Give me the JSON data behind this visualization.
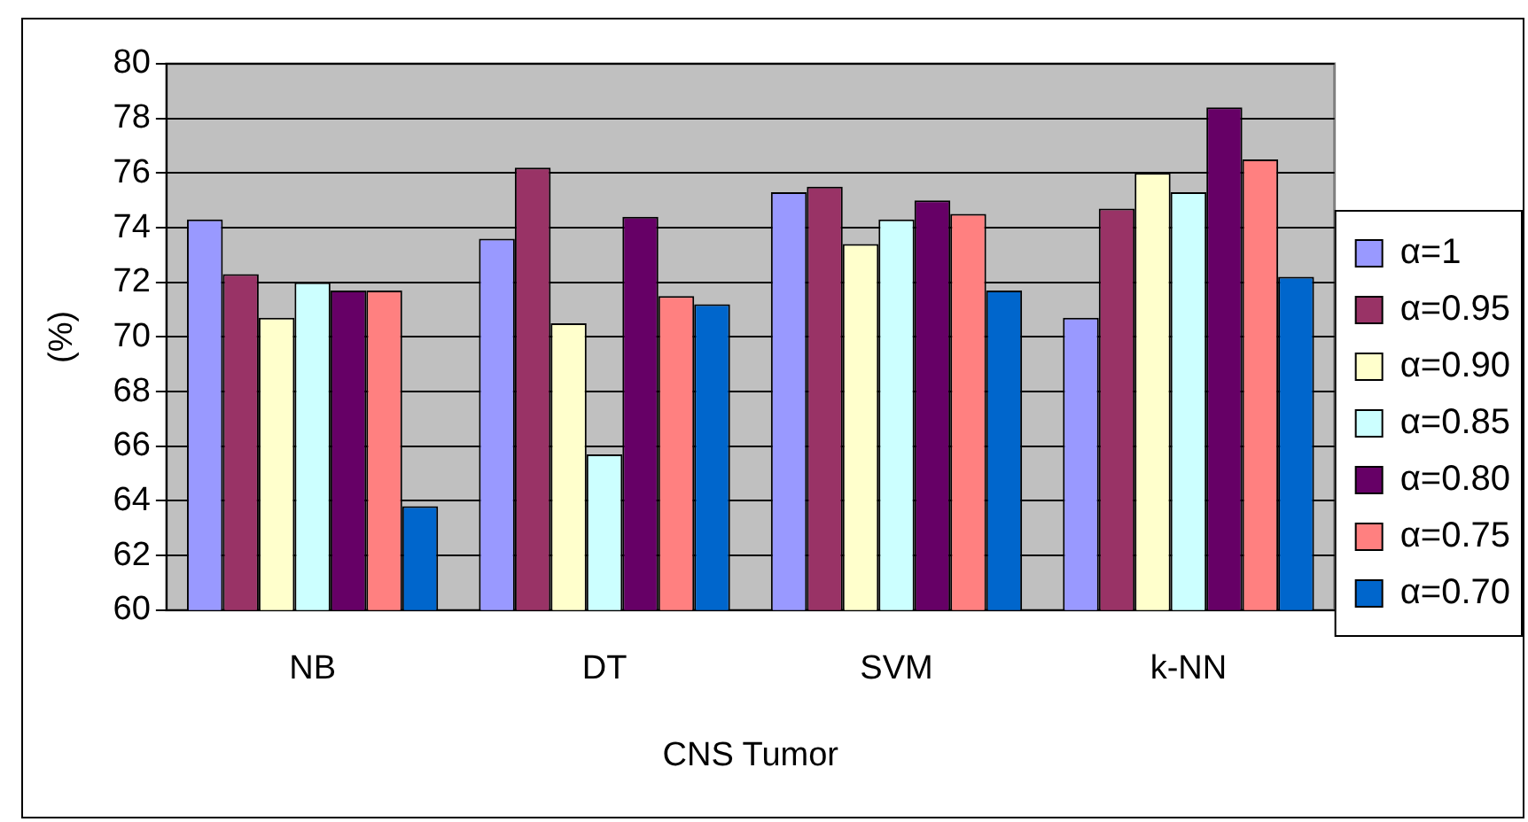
{
  "chart_data": {
    "type": "bar",
    "xlabel": "CNS Tumor",
    "ylabel": "(%)",
    "categories": [
      "NB",
      "DT",
      "SVM",
      "k-NN"
    ],
    "series": [
      {
        "name": "α=1",
        "color": "#9999ff",
        "values": [
          74.3,
          73.6,
          75.3,
          70.7
        ]
      },
      {
        "name": "α=0.95",
        "color": "#993366",
        "values": [
          72.3,
          76.2,
          75.5,
          74.7
        ]
      },
      {
        "name": "α=0.90",
        "color": "#ffffcc",
        "values": [
          70.7,
          70.5,
          73.4,
          76.0
        ]
      },
      {
        "name": "α=0.85",
        "color": "#ccffff",
        "values": [
          72.0,
          65.7,
          74.3,
          75.3
        ]
      },
      {
        "name": "α=0.80",
        "color": "#660066",
        "values": [
          71.7,
          74.4,
          75.0,
          78.4
        ]
      },
      {
        "name": "α=0.75",
        "color": "#ff8080",
        "values": [
          71.7,
          71.5,
          74.5,
          76.5
        ]
      },
      {
        "name": "α=0.70",
        "color": "#0066cc",
        "values": [
          63.8,
          71.2,
          71.7,
          72.2
        ]
      }
    ],
    "ylim": [
      60,
      80
    ],
    "yticks": [
      60,
      62,
      64,
      66,
      68,
      70,
      72,
      74,
      76,
      78,
      80
    ],
    "grid": "y",
    "legend": "right"
  }
}
